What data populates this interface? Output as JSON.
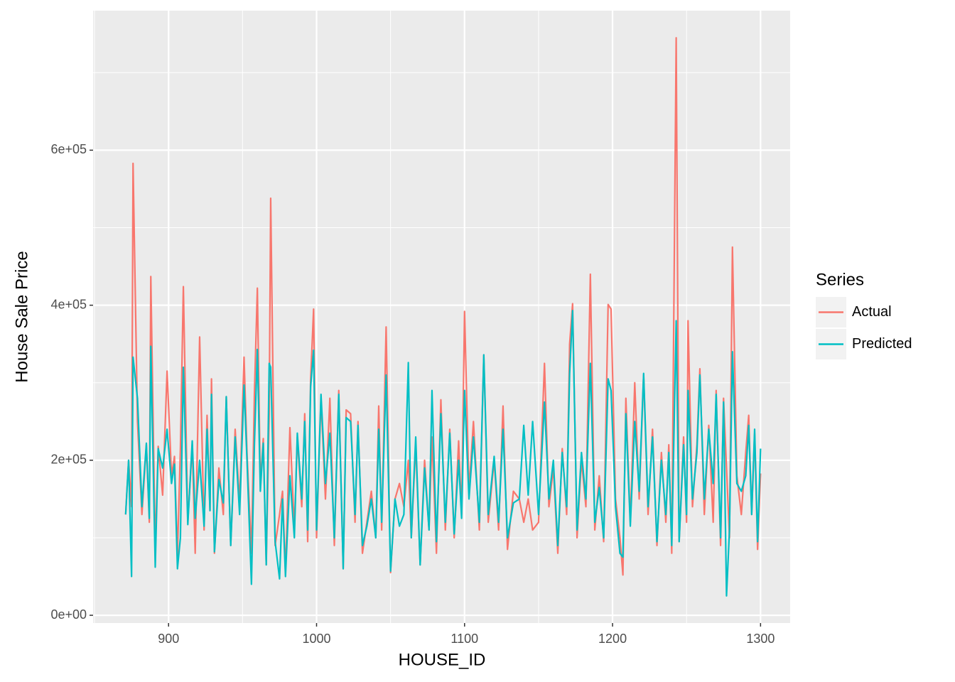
{
  "chart_data": {
    "type": "line",
    "x_label": "HOUSE_ID",
    "y_label": "House Sale Price",
    "legend_title": "Series",
    "legend_position": "right",
    "grid": true,
    "xlim": [
      849,
      1320
    ],
    "xticks": [
      900,
      1000,
      1100,
      1200,
      1300
    ],
    "ylim": [
      -10000,
      780000
    ],
    "yticks": [
      {
        "value": 0,
        "label": "0e+00"
      },
      {
        "value": 200000,
        "label": "2e+05"
      },
      {
        "value": 400000,
        "label": "4e+05"
      },
      {
        "value": 600000,
        "label": "6e+05"
      }
    ],
    "x": [
      871,
      873,
      875,
      876,
      879,
      882,
      885,
      887,
      888,
      891,
      893,
      896,
      899,
      902,
      904,
      906,
      908,
      910,
      913,
      916,
      918,
      921,
      924,
      926,
      928,
      929,
      931,
      934,
      937,
      939,
      942,
      945,
      948,
      951,
      953,
      956,
      958,
      960,
      962,
      964,
      966,
      968,
      969,
      972,
      975,
      977,
      979,
      982,
      985,
      987,
      990,
      992,
      994,
      996,
      998,
      1000,
      1003,
      1006,
      1009,
      1012,
      1015,
      1018,
      1020,
      1023,
      1026,
      1028,
      1031,
      1034,
      1037,
      1040,
      1042,
      1044,
      1047,
      1050,
      1053,
      1056,
      1059,
      1062,
      1064,
      1067,
      1070,
      1073,
      1076,
      1078,
      1081,
      1084,
      1087,
      1090,
      1093,
      1096,
      1098,
      1100,
      1103,
      1106,
      1110,
      1113,
      1116,
      1120,
      1123,
      1126,
      1129,
      1133,
      1137,
      1140,
      1143,
      1146,
      1150,
      1154,
      1157,
      1160,
      1163,
      1166,
      1169,
      1171,
      1173,
      1176,
      1179,
      1182,
      1185,
      1188,
      1191,
      1194,
      1197,
      1199,
      1202,
      1205,
      1207,
      1209,
      1212,
      1215,
      1218,
      1221,
      1224,
      1227,
      1230,
      1233,
      1236,
      1238,
      1240,
      1243,
      1245,
      1248,
      1250,
      1251,
      1254,
      1257,
      1259,
      1262,
      1265,
      1268,
      1270,
      1273,
      1275,
      1277,
      1279,
      1281,
      1284,
      1287,
      1290,
      1292,
      1294,
      1296,
      1298,
      1300
    ],
    "series": [
      {
        "name": "Actual",
        "color": "#f8766d",
        "values": [
          130000,
          200000,
          140000,
          583000,
          250000,
          130000,
          220000,
          120000,
          437000,
          85000,
          218000,
          155000,
          315000,
          180000,
          205000,
          78000,
          215000,
          424000,
          120000,
          220000,
          80000,
          359000,
          110000,
          258000,
          135000,
          305000,
          80000,
          190000,
          130000,
          282000,
          90000,
          240000,
          145000,
          333000,
          210000,
          80000,
          285000,
          422000,
          170000,
          228000,
          65000,
          260000,
          538000,
          90000,
          130000,
          160000,
          55000,
          242000,
          110000,
          230000,
          140000,
          260000,
          95000,
          305000,
          395000,
          100000,
          280000,
          150000,
          280000,
          90000,
          290000,
          60000,
          265000,
          260000,
          120000,
          250000,
          80000,
          120000,
          160000,
          100000,
          270000,
          110000,
          372000,
          55000,
          150000,
          170000,
          140000,
          200000,
          100000,
          220000,
          65000,
          200000,
          110000,
          230000,
          80000,
          278000,
          110000,
          240000,
          100000,
          225000,
          130000,
          392000,
          160000,
          250000,
          110000,
          336000,
          120000,
          200000,
          110000,
          270000,
          85000,
          160000,
          150000,
          120000,
          150000,
          110000,
          120000,
          325000,
          140000,
          190000,
          80000,
          215000,
          130000,
          350000,
          402000,
          100000,
          200000,
          140000,
          440000,
          110000,
          180000,
          95000,
          401000,
          395000,
          150000,
          100000,
          52000,
          280000,
          120000,
          300000,
          150000,
          310000,
          130000,
          240000,
          90000,
          210000,
          120000,
          220000,
          80000,
          745000,
          95000,
          230000,
          120000,
          380000,
          140000,
          220000,
          318000,
          130000,
          245000,
          120000,
          290000,
          90000,
          280000,
          190000,
          100000,
          475000,
          180000,
          130000,
          210000,
          258000,
          130000,
          235000,
          85000,
          183000
        ]
      },
      {
        "name": "Predicted",
        "color": "#00bfc4",
        "values": [
          130000,
          200000,
          50000,
          333000,
          280000,
          140000,
          222000,
          125000,
          347000,
          62000,
          215000,
          190000,
          240000,
          170000,
          195000,
          60000,
          100000,
          320000,
          117000,
          225000,
          125000,
          200000,
          115000,
          240000,
          135000,
          285000,
          82000,
          175000,
          145000,
          282000,
          90000,
          230000,
          130000,
          297000,
          200000,
          40000,
          220000,
          343000,
          160000,
          222000,
          65000,
          325000,
          320000,
          95000,
          47000,
          150000,
          50000,
          180000,
          100000,
          235000,
          150000,
          250000,
          110000,
          295000,
          342000,
          110000,
          285000,
          170000,
          235000,
          100000,
          285000,
          60000,
          255000,
          250000,
          130000,
          245000,
          90000,
          115000,
          150000,
          100000,
          240000,
          120000,
          310000,
          57000,
          150000,
          115000,
          130000,
          326000,
          100000,
          230000,
          65000,
          190000,
          110000,
          290000,
          95000,
          260000,
          120000,
          235000,
          105000,
          200000,
          125000,
          290000,
          150000,
          230000,
          120000,
          336000,
          130000,
          205000,
          120000,
          240000,
          100000,
          145000,
          150000,
          245000,
          155000,
          250000,
          130000,
          275000,
          150000,
          200000,
          90000,
          210000,
          140000,
          312000,
          393000,
          110000,
          210000,
          150000,
          325000,
          120000,
          165000,
          100000,
          305000,
          290000,
          140000,
          80000,
          75000,
          260000,
          115000,
          250000,
          160000,
          312000,
          140000,
          230000,
          95000,
          200000,
          130000,
          210000,
          90000,
          380000,
          95000,
          220000,
          130000,
          290000,
          150000,
          210000,
          310000,
          150000,
          240000,
          170000,
          285000,
          100000,
          275000,
          25000,
          110000,
          340000,
          170000,
          160000,
          180000,
          245000,
          130000,
          240000,
          95000,
          215000
        ]
      }
    ]
  }
}
